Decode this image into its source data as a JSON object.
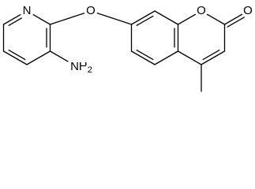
{
  "labels": {
    "pyridine_n": "N",
    "ether_o": "O",
    "ring_o": "O",
    "carbonyl_o": "O"
  },
  "amine": {
    "text": "NH",
    "subscript": "2"
  }
}
